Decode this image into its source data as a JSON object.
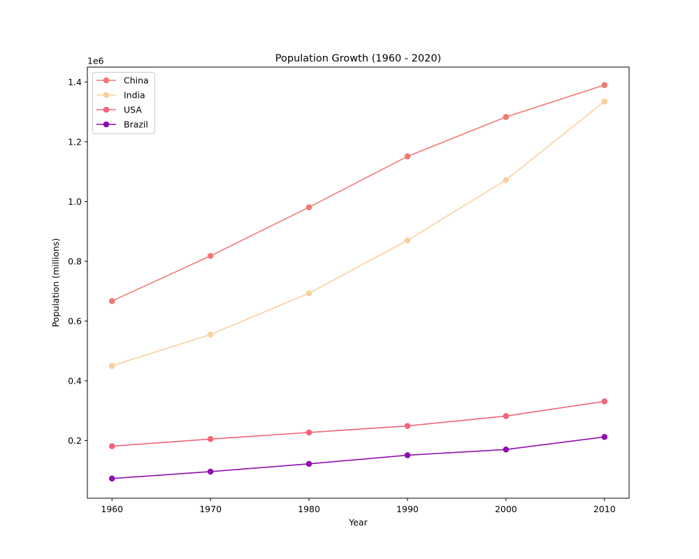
{
  "chart_data": {
    "type": "line",
    "title": "Population Growth (1960 - 2020)",
    "xlabel": "Year",
    "ylabel": "Population (millions)",
    "y_offset_label": "1e6",
    "x": [
      1960,
      1970,
      1980,
      1990,
      2000,
      2010
    ],
    "x_ticks": [
      1960,
      1970,
      1980,
      1990,
      2000,
      2010
    ],
    "y_ticks": [
      "0.2",
      "0.4",
      "0.6",
      "0.8",
      "1.0",
      "1.2",
      "1.4"
    ],
    "y_tick_values": [
      0.2,
      0.4,
      0.6,
      0.8,
      1.0,
      1.2,
      1.4
    ],
    "xlim": [
      1957.5,
      2012.5
    ],
    "ylim": [
      0.007,
      1.45
    ],
    "grid": false,
    "legend_position": "top-left",
    "markers": "circle",
    "series": [
      {
        "name": "China",
        "color": "#f07a72",
        "values": [
          0.667,
          0.818,
          0.981,
          1.151,
          1.283,
          1.39
        ]
      },
      {
        "name": "India",
        "color": "#f7d19e",
        "values": [
          0.45,
          0.555,
          0.693,
          0.87,
          1.072,
          1.335
        ]
      },
      {
        "name": "USA",
        "color": "#f1657a",
        "values": [
          0.181,
          0.205,
          0.227,
          0.249,
          0.282,
          0.331
        ]
      },
      {
        "name": "Brazil",
        "color": "#8f0fad",
        "values": [
          0.073,
          0.096,
          0.122,
          0.151,
          0.17,
          0.212
        ]
      }
    ]
  }
}
